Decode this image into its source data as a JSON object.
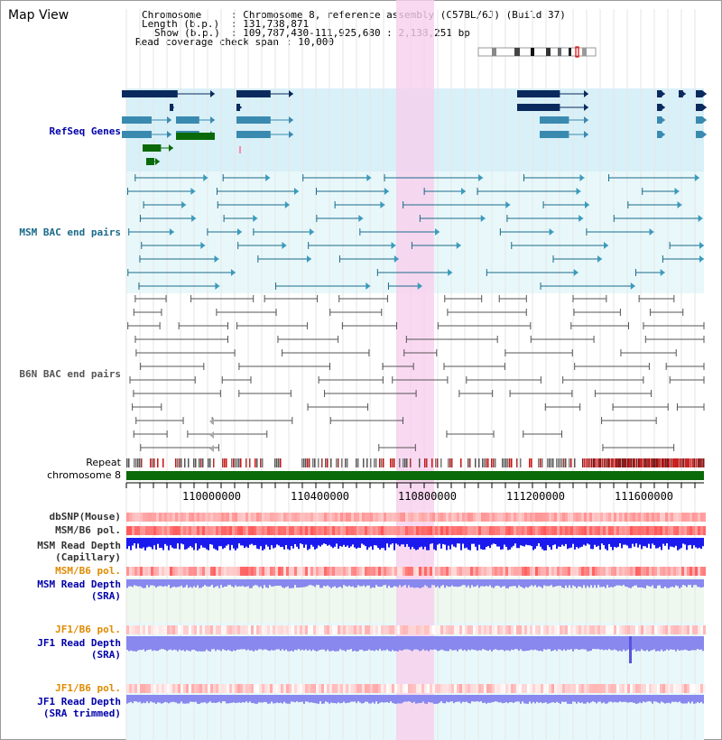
{
  "page_title": "Map View",
  "header": {
    "chromosome_label": "Chromosome",
    "chromosome_value": ": Chromosome 8, reference assembly (C57BL/6J) (Build 37)",
    "length_label": "Length (b.p.)",
    "length_value": ": 131,738,871",
    "show_label": "Show (b.p.)",
    "show_value": ": 109,787,430-111,925,680 : 2,138,251 bp",
    "coverage_label": "Read coverage check span",
    "coverage_value": ": 10,000"
  },
  "tracks": {
    "refseq": "RefSeq Genes",
    "msm_bac": "MSM BAC end pairs",
    "b6n_bac": "B6N BAC end pairs",
    "repeat": "Repeat",
    "chromosome": "chromosome 8",
    "dbsnp": "dbSNP(Mouse)",
    "msm_b6_pol_1": "MSM/B6 pol.",
    "msm_read_depth_cap_1": "MSM Read Depth",
    "msm_read_depth_cap_2": "(Capillary)",
    "msm_b6_pol_2": "MSM/B6 pol.",
    "msm_read_depth_sra_1": "MSM Read Depth",
    "msm_read_depth_sra_2": "(SRA)",
    "jf1_b6_pol_1": "JF1/B6 pol.",
    "jf1_read_depth_sra_1": "JF1 Read Depth",
    "jf1_read_depth_sra_2": "(SRA)",
    "jf1_b6_pol_2": "JF1/B6 pol.",
    "jf1_read_depth_trim_1": "JF1 Read Depth",
    "jf1_read_depth_trim_2": "(SRA trimmed)"
  },
  "axis": {
    "ticks": [
      "110000000",
      "110400000",
      "110800000",
      "111200000",
      "111600000"
    ]
  },
  "colors": {
    "gene_dark": "#0a2a5e",
    "gene_teal": "#3a8ab0",
    "gene_green": "#0a6a0a",
    "msm_line": "#1a6a8a",
    "b6n_line": "#555555",
    "refseq_bg": "#d8f0f8",
    "msm_bg": "#e8f8fa",
    "highlight": "#f8d8f0",
    "depth_blue": "#1a1aee",
    "depth_light": "#8888ee",
    "pol_red": "#ee3333"
  }
}
